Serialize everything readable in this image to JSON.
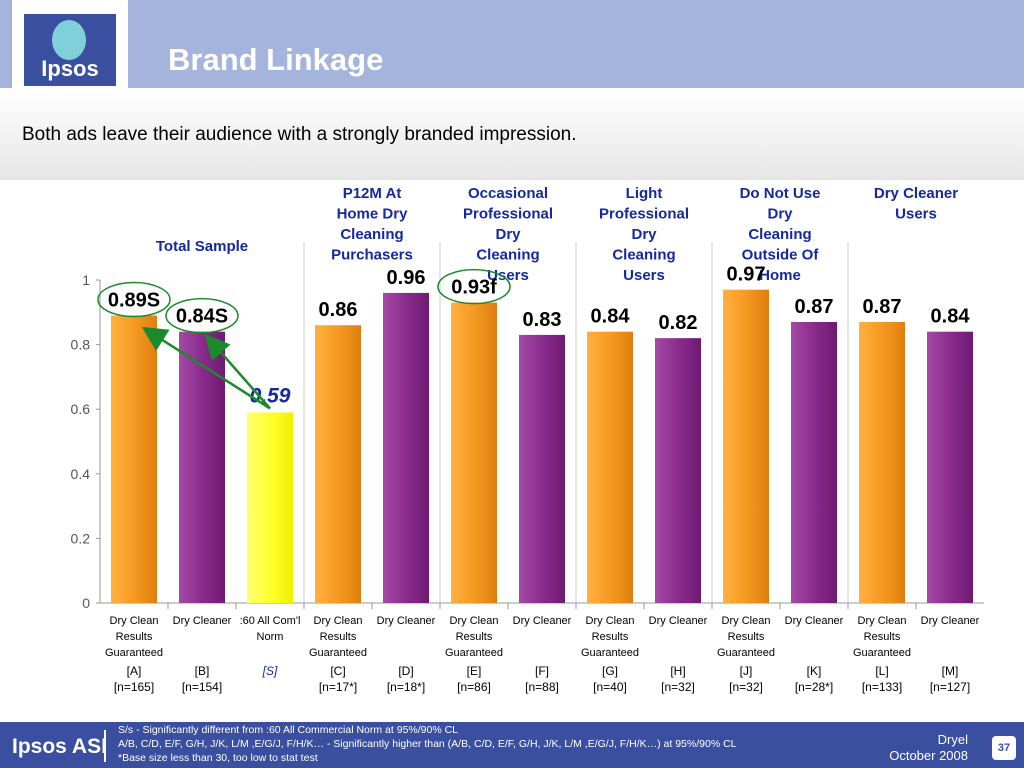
{
  "header": {
    "title": "Brand Linkage",
    "logo_text": "Ipsos"
  },
  "subtitle": "Both ads leave their audience with a strongly branded impression.",
  "colors": {
    "orange": "#f59a22",
    "purple": "#8a2b8c",
    "yellow": "#ffff44",
    "blue_text": "#1428a0",
    "green_arrow": "#1a8a2a",
    "header": "#a4b4dc",
    "footer": "#3a4fa0"
  },
  "chart_data": {
    "type": "bar",
    "ylim": [
      0,
      1
    ],
    "yticks": [
      "0",
      "0.2",
      "0.4",
      "0.6",
      "0.8",
      "1"
    ],
    "groups": [
      {
        "label": "Total Sample",
        "bars": [
          0,
          1,
          2
        ]
      },
      {
        "label": "P12M At Home Dry Cleaning Purchasers",
        "bars": [
          3,
          4
        ]
      },
      {
        "label": "Occasional Professional Dry Cleaning Users",
        "bars": [
          5,
          6
        ]
      },
      {
        "label": "Light Professional Dry Cleaning Users",
        "bars": [
          7,
          8
        ]
      },
      {
        "label": "Do Not Use Dry Cleaning Outside Of Home",
        "bars": [
          9,
          10
        ]
      },
      {
        "label": "Dry Cleaner Users",
        "bars": [
          11,
          12
        ]
      }
    ],
    "bars": [
      {
        "value": 0.89,
        "label": "0.89S",
        "category": [
          "Dry Clean",
          "Results",
          "Guaranteed"
        ],
        "code": "[A]",
        "n": "[n=165]",
        "color": "orange",
        "circled": true
      },
      {
        "value": 0.84,
        "label": "0.84S",
        "category": [
          "Dry Cleaner"
        ],
        "code": "[B]",
        "n": "[n=154]",
        "color": "purple",
        "circled": true
      },
      {
        "value": 0.59,
        "label": "0.59",
        "category": [
          ":60 All Com'l",
          "Norm"
        ],
        "code": "[S]",
        "n": "",
        "color": "yellow",
        "circled": false,
        "highlight": true
      },
      {
        "value": 0.86,
        "label": "0.86",
        "category": [
          "Dry Clean",
          "Results",
          "Guaranteed"
        ],
        "code": "[C]",
        "n": "[n=17*]",
        "color": "orange",
        "circled": false
      },
      {
        "value": 0.96,
        "label": "0.96",
        "category": [
          "Dry Cleaner"
        ],
        "code": "[D]",
        "n": "[n=18*]",
        "color": "purple",
        "circled": false
      },
      {
        "value": 0.93,
        "label": "0.93f",
        "category": [
          "Dry Clean",
          "Results",
          "Guaranteed"
        ],
        "code": "[E]",
        "n": "[n=86]",
        "color": "orange",
        "circled": true
      },
      {
        "value": 0.83,
        "label": "0.83",
        "category": [
          "Dry Cleaner"
        ],
        "code": "[F]",
        "n": "[n=88]",
        "color": "purple",
        "circled": false
      },
      {
        "value": 0.84,
        "label": "0.84",
        "category": [
          "Dry Clean",
          "Results",
          "Guaranteed"
        ],
        "code": "[G]",
        "n": "[n=40]",
        "color": "orange",
        "circled": false
      },
      {
        "value": 0.82,
        "label": "0.82",
        "category": [
          "Dry Cleaner"
        ],
        "code": "[H]",
        "n": "[n=32]",
        "color": "purple",
        "circled": false
      },
      {
        "value": 0.97,
        "label": "0.97",
        "category": [
          "Dry Clean",
          "Results",
          "Guaranteed"
        ],
        "code": "[J]",
        "n": "[n=32]",
        "color": "orange",
        "circled": false
      },
      {
        "value": 0.87,
        "label": "0.87",
        "category": [
          "Dry Cleaner"
        ],
        "code": "[K]",
        "n": "[n=28*]",
        "color": "purple",
        "circled": false
      },
      {
        "value": 0.87,
        "label": "0.87",
        "category": [
          "Dry Clean",
          "Results",
          "Guaranteed"
        ],
        "code": "[L]",
        "n": "[n=133]",
        "color": "orange",
        "circled": false
      },
      {
        "value": 0.84,
        "label": "0.84",
        "category": [
          "Dry Cleaner"
        ],
        "code": "[M]",
        "n": "[n=127]",
        "color": "purple",
        "circled": false
      }
    ],
    "arrows": [
      {
        "from": 2,
        "to": 0
      },
      {
        "from": 2,
        "to": 1
      }
    ]
  },
  "footer": {
    "logo": "Ipsos ASI",
    "note1": "S/s - Significantly different from :60 All Commercial Norm  at 95%/90% CL",
    "note2": "A/B, C/D, E/F, G/H, J/K, L/M ,E/G/J, F/H/K… - Significantly higher than (A/B, C/D, E/F, G/H, J/K, L/M ,E/G/J, F/H/K…) at 95%/90% CL",
    "note3": "*Base size less than 30, too low to stat test",
    "client": "Dryel",
    "date": "October 2008",
    "page": "37"
  }
}
